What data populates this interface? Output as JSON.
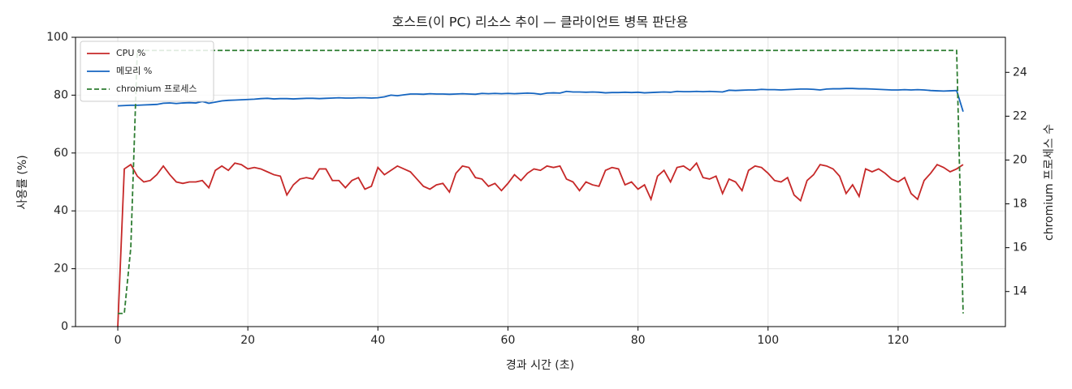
{
  "chart_data": {
    "type": "line",
    "title": "호스트(이 PC) 리소스 추이 — 클라이언트 병목 판단용",
    "x_label": "경과 시간 (초)",
    "y_label": "사용률 (%)",
    "y2_label": "chromium 프로세스 수",
    "x": [
      0,
      1,
      2,
      3,
      4,
      5,
      6,
      7,
      8,
      9,
      10,
      11,
      12,
      13,
      14,
      15,
      16,
      17,
      18,
      19,
      20,
      21,
      22,
      23,
      24,
      25,
      26,
      27,
      28,
      29,
      30,
      31,
      32,
      33,
      34,
      35,
      36,
      37,
      38,
      39,
      40,
      41,
      42,
      43,
      44,
      45,
      46,
      47,
      48,
      49,
      50,
      51,
      52,
      53,
      54,
      55,
      56,
      57,
      58,
      59,
      60,
      61,
      62,
      63,
      64,
      65,
      66,
      67,
      68,
      69,
      70,
      71,
      72,
      73,
      74,
      75,
      76,
      77,
      78,
      79,
      80,
      81,
      82,
      83,
      84,
      85,
      86,
      87,
      88,
      89,
      90,
      91,
      92,
      93,
      94,
      95,
      96,
      97,
      98,
      99,
      100,
      101,
      102,
      103,
      104,
      105,
      106,
      107,
      108,
      109,
      110,
      111,
      112,
      113,
      114,
      115,
      116,
      117,
      118,
      119,
      120,
      121,
      122,
      123,
      124,
      125,
      126,
      127,
      128,
      129,
      130
    ],
    "series": [
      {
        "name": "CPU %",
        "color": "#c62828",
        "linestyle": "solid",
        "values": [
          0,
          54.5,
          56,
          52,
          50,
          50.5,
          52.5,
          55.5,
          52.5,
          50,
          49.5,
          50,
          50,
          50.5,
          48,
          54,
          55.5,
          54,
          56.5,
          56,
          54.5,
          55,
          54.5,
          53.5,
          52.5,
          52,
          45.5,
          49,
          51,
          51.5,
          51,
          54.5,
          54.5,
          50.5,
          50.5,
          48,
          50.5,
          51.5,
          47.5,
          48.5,
          55,
          52.5,
          54,
          55.5,
          54.5,
          53.5,
          51,
          48.5,
          47.5,
          49,
          49.5,
          46.5,
          53,
          55.5,
          55,
          51.5,
          51,
          48.5,
          49.5,
          47,
          49.5,
          52.5,
          50.5,
          53,
          54.5,
          54,
          55.5,
          55,
          55.5,
          51,
          50,
          47,
          50,
          49,
          48.5,
          54,
          55,
          54.5,
          49,
          50,
          47.5,
          49,
          44,
          52,
          54,
          50,
          55,
          55.5,
          54,
          56.5,
          51.5,
          51,
          52,
          46,
          51,
          50,
          47,
          54,
          55.5,
          55,
          53,
          50.5,
          50,
          51.5,
          45.5,
          43.5,
          50.5,
          52.5,
          56,
          55.5,
          54.5,
          52,
          46,
          49,
          45,
          54.5,
          53.5,
          54.5,
          53,
          51,
          50,
          51.5,
          46,
          44,
          50.5,
          53,
          56,
          55,
          53.5,
          54.5,
          56
        ]
      },
      {
        "name": "메모리 %",
        "color": "#1565c0",
        "linestyle": "solid",
        "values": [
          76.3,
          76.4,
          76.5,
          76.5,
          76.6,
          76.7,
          76.8,
          77.2,
          77.3,
          77.1,
          77.3,
          77.4,
          77.3,
          77.8,
          77.2,
          77.6,
          78.0,
          78.2,
          78.3,
          78.4,
          78.5,
          78.6,
          78.8,
          78.9,
          78.7,
          78.8,
          78.8,
          78.7,
          78.8,
          78.9,
          78.9,
          78.8,
          78.9,
          79.0,
          79.1,
          79.0,
          79.0,
          79.1,
          79.1,
          79.0,
          79.1,
          79.4,
          80.0,
          79.8,
          80.1,
          80.4,
          80.4,
          80.3,
          80.5,
          80.4,
          80.4,
          80.3,
          80.4,
          80.5,
          80.4,
          80.3,
          80.6,
          80.5,
          80.6,
          80.5,
          80.6,
          80.5,
          80.6,
          80.7,
          80.6,
          80.3,
          80.7,
          80.8,
          80.7,
          81.3,
          81.1,
          81.1,
          81.0,
          81.1,
          81.0,
          80.8,
          80.9,
          80.9,
          81.0,
          80.9,
          81.0,
          80.8,
          80.9,
          81.0,
          81.1,
          81.0,
          81.3,
          81.2,
          81.2,
          81.3,
          81.2,
          81.3,
          81.2,
          81.1,
          81.7,
          81.6,
          81.7,
          81.8,
          81.8,
          82.0,
          81.9,
          81.9,
          81.8,
          81.9,
          82.0,
          82.1,
          82.1,
          82.0,
          81.8,
          82.1,
          82.2,
          82.2,
          82.3,
          82.3,
          82.2,
          82.2,
          82.1,
          82.0,
          81.9,
          81.8,
          81.8,
          81.9,
          81.8,
          81.9,
          81.8,
          81.6,
          81.5,
          81.4,
          81.5,
          81.6,
          74.3
        ]
      },
      {
        "name": "chromium 프로세스",
        "color": "#2e7d32",
        "linestyle": "dashed",
        "axis": "y2",
        "values": [
          13,
          13,
          16,
          25,
          25,
          25,
          25,
          25,
          25,
          25,
          25,
          25,
          25,
          25,
          25,
          25,
          25,
          25,
          25,
          25,
          25,
          25,
          25,
          25,
          25,
          25,
          25,
          25,
          25,
          25,
          25,
          25,
          25,
          25,
          25,
          25,
          25,
          25,
          25,
          25,
          25,
          25,
          25,
          25,
          25,
          25,
          25,
          25,
          25,
          25,
          25,
          25,
          25,
          25,
          25,
          25,
          25,
          25,
          25,
          25,
          25,
          25,
          25,
          25,
          25,
          25,
          25,
          25,
          25,
          25,
          25,
          25,
          25,
          25,
          25,
          25,
          25,
          25,
          25,
          25,
          25,
          25,
          25,
          25,
          25,
          25,
          25,
          25,
          25,
          25,
          25,
          25,
          25,
          25,
          25,
          25,
          25,
          25,
          25,
          25,
          25,
          25,
          25,
          25,
          25,
          25,
          25,
          25,
          25,
          25,
          25,
          25,
          25,
          25,
          25,
          25,
          25,
          25,
          25,
          25,
          25,
          25,
          25,
          25,
          25,
          25,
          25,
          25,
          25,
          25,
          13
        ]
      }
    ],
    "xlim": [
      -6.5,
      136.5
    ],
    "xticks": [
      0,
      20,
      40,
      60,
      80,
      100,
      120
    ],
    "ylim": [
      0,
      100
    ],
    "yticks": [
      0,
      20,
      40,
      60,
      80,
      100
    ],
    "y2lim": [
      12.4,
      25.6
    ],
    "y2ticks": [
      14,
      16,
      18,
      20,
      22,
      24
    ],
    "grid": true,
    "legend": "upper left"
  }
}
